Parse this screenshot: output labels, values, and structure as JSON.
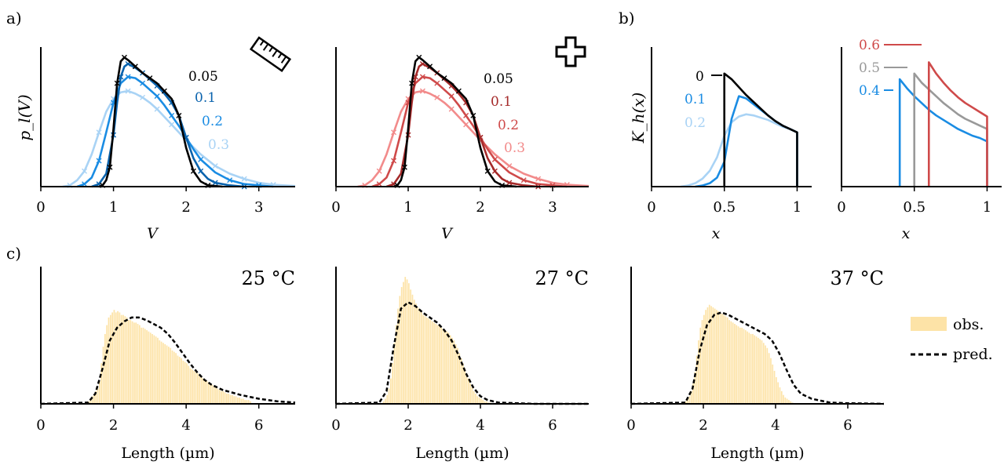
{
  "figure": {
    "panel_labels": {
      "a": "a)",
      "b": "b)",
      "c": "c)"
    },
    "colors": {
      "black": "#000000",
      "blue_dark": "#0a63ad",
      "blue_mid": "#1a8ce3",
      "blue_light": "#a9d3f5",
      "red_dark": "#a52a2a",
      "red_mid": "#cf4a4a",
      "red_light": "#f28b8b",
      "grey": "#999999",
      "hist": "#fde3a7",
      "pred": "#000000"
    }
  },
  "chart_data": [
    {
      "id": "a-left",
      "type": "line",
      "icon": "ruler-icon",
      "xlabel": "V",
      "ylabel": "p_l(V)",
      "xlim": [
        0,
        3.5
      ],
      "xticks": [
        "0",
        "1",
        "2",
        "3"
      ],
      "series": [
        {
          "name": "0.05",
          "color": "#000000",
          "x": [
            0.8,
            0.85,
            0.9,
            0.95,
            1.0,
            1.05,
            1.1,
            1.15,
            1.2,
            1.3,
            1.4,
            1.5,
            1.6,
            1.7,
            1.8,
            1.9,
            2.0,
            2.1,
            2.2,
            2.3,
            2.5
          ],
          "y": [
            0,
            0.01,
            0.05,
            0.15,
            0.45,
            0.8,
            0.97,
            1.0,
            0.98,
            0.93,
            0.88,
            0.84,
            0.8,
            0.74,
            0.68,
            0.55,
            0.3,
            0.12,
            0.04,
            0.01,
            0
          ]
        },
        {
          "name": "0.1",
          "color": "#0a63ad",
          "x": [
            0.7,
            0.8,
            0.9,
            1.0,
            1.05,
            1.1,
            1.15,
            1.2,
            1.3,
            1.4,
            1.5,
            1.6,
            1.7,
            1.8,
            1.9,
            2.0,
            2.1,
            2.2,
            2.3,
            2.4,
            2.6,
            2.8
          ],
          "y": [
            0,
            0.02,
            0.1,
            0.4,
            0.65,
            0.85,
            0.93,
            0.95,
            0.92,
            0.88,
            0.83,
            0.78,
            0.72,
            0.65,
            0.55,
            0.38,
            0.22,
            0.12,
            0.06,
            0.03,
            0.01,
            0
          ]
        },
        {
          "name": "0.2",
          "color": "#1a8ce3",
          "x": [
            0.5,
            0.6,
            0.7,
            0.8,
            0.9,
            1.0,
            1.1,
            1.2,
            1.3,
            1.4,
            1.5,
            1.6,
            1.7,
            1.8,
            1.9,
            2.0,
            2.1,
            2.2,
            2.4,
            2.6,
            2.8,
            3.0,
            3.2
          ],
          "y": [
            0,
            0.02,
            0.07,
            0.2,
            0.42,
            0.65,
            0.8,
            0.85,
            0.84,
            0.8,
            0.75,
            0.7,
            0.63,
            0.55,
            0.47,
            0.38,
            0.29,
            0.21,
            0.11,
            0.05,
            0.02,
            0.01,
            0
          ]
        },
        {
          "name": "0.3",
          "color": "#a9d3f5",
          "x": [
            0.3,
            0.4,
            0.5,
            0.6,
            0.7,
            0.8,
            0.9,
            1.0,
            1.1,
            1.2,
            1.3,
            1.4,
            1.5,
            1.6,
            1.7,
            1.8,
            1.9,
            2.0,
            2.2,
            2.4,
            2.6,
            2.8,
            3.0,
            3.2,
            3.5
          ],
          "y": [
            0,
            0.01,
            0.05,
            0.12,
            0.25,
            0.42,
            0.58,
            0.68,
            0.73,
            0.74,
            0.72,
            0.69,
            0.65,
            0.6,
            0.54,
            0.48,
            0.42,
            0.36,
            0.25,
            0.16,
            0.1,
            0.06,
            0.03,
            0.015,
            0.005
          ]
        }
      ]
    },
    {
      "id": "a-right",
      "type": "line",
      "icon": "plus-icon",
      "xlabel": "V",
      "xlim": [
        0,
        3.5
      ],
      "xticks": [
        "0",
        "1",
        "2",
        "3"
      ],
      "series": [
        {
          "name": "0.05",
          "color": "#000000",
          "x": [
            0.8,
            0.85,
            0.9,
            0.95,
            1.0,
            1.05,
            1.1,
            1.15,
            1.2,
            1.3,
            1.4,
            1.5,
            1.6,
            1.7,
            1.8,
            1.9,
            2.0,
            2.1,
            2.2,
            2.3,
            2.5
          ],
          "y": [
            0,
            0.01,
            0.05,
            0.15,
            0.45,
            0.8,
            0.97,
            1.0,
            0.98,
            0.93,
            0.88,
            0.84,
            0.8,
            0.74,
            0.68,
            0.55,
            0.3,
            0.12,
            0.04,
            0.01,
            0
          ]
        },
        {
          "name": "0.1",
          "color": "#a52a2a",
          "x": [
            0.7,
            0.8,
            0.9,
            1.0,
            1.05,
            1.1,
            1.15,
            1.2,
            1.3,
            1.4,
            1.5,
            1.6,
            1.7,
            1.8,
            1.9,
            2.0,
            2.1,
            2.2,
            2.3,
            2.4,
            2.6,
            2.8
          ],
          "y": [
            0,
            0.02,
            0.1,
            0.4,
            0.65,
            0.85,
            0.93,
            0.95,
            0.92,
            0.88,
            0.83,
            0.78,
            0.72,
            0.65,
            0.55,
            0.38,
            0.22,
            0.12,
            0.06,
            0.03,
            0.01,
            0
          ]
        },
        {
          "name": "0.2",
          "color": "#cf4a4a",
          "x": [
            0.5,
            0.6,
            0.7,
            0.8,
            0.9,
            1.0,
            1.1,
            1.2,
            1.3,
            1.4,
            1.5,
            1.6,
            1.7,
            1.8,
            1.9,
            2.0,
            2.1,
            2.2,
            2.4,
            2.6,
            2.8,
            3.0,
            3.2
          ],
          "y": [
            0,
            0.02,
            0.07,
            0.2,
            0.42,
            0.65,
            0.8,
            0.85,
            0.84,
            0.8,
            0.75,
            0.7,
            0.63,
            0.55,
            0.47,
            0.38,
            0.29,
            0.21,
            0.11,
            0.05,
            0.02,
            0.01,
            0
          ]
        },
        {
          "name": "0.3",
          "color": "#f28b8b",
          "x": [
            0.3,
            0.4,
            0.5,
            0.6,
            0.7,
            0.8,
            0.9,
            1.0,
            1.1,
            1.2,
            1.3,
            1.4,
            1.5,
            1.6,
            1.7,
            1.8,
            1.9,
            2.0,
            2.2,
            2.4,
            2.6,
            2.8,
            3.0,
            3.2,
            3.5
          ],
          "y": [
            0,
            0.01,
            0.05,
            0.12,
            0.25,
            0.42,
            0.58,
            0.68,
            0.73,
            0.74,
            0.72,
            0.69,
            0.65,
            0.6,
            0.54,
            0.48,
            0.42,
            0.36,
            0.25,
            0.16,
            0.1,
            0.06,
            0.03,
            0.015,
            0.005
          ]
        }
      ]
    },
    {
      "id": "b-left",
      "type": "line",
      "xlabel": "x",
      "ylabel": "K_h(x)",
      "xlim": [
        0,
        1.1
      ],
      "xticks": [
        "0",
        "0.5",
        "1"
      ],
      "series": [
        {
          "name": "0",
          "color": "#000000",
          "x": [
            0.5,
            0.5,
            0.55,
            0.6,
            0.65,
            0.7,
            0.75,
            0.8,
            0.85,
            0.9,
            0.95,
            1.0,
            1.0
          ],
          "y": [
            0,
            1.0,
            0.95,
            0.88,
            0.81,
            0.75,
            0.69,
            0.63,
            0.58,
            0.54,
            0.51,
            0.48,
            0
          ]
        },
        {
          "name": "0.1",
          "color": "#1a8ce3",
          "x": [
            0.3,
            0.35,
            0.4,
            0.45,
            0.5,
            0.55,
            0.6,
            0.65,
            0.7,
            0.75,
            0.8,
            0.85,
            0.9,
            0.95,
            1.0,
            1.0
          ],
          "y": [
            0,
            0.01,
            0.03,
            0.08,
            0.22,
            0.6,
            0.8,
            0.78,
            0.73,
            0.68,
            0.63,
            0.58,
            0.54,
            0.51,
            0.48,
            0
          ]
        },
        {
          "name": "0.2",
          "color": "#a9d3f5",
          "x": [
            0.2,
            0.25,
            0.3,
            0.35,
            0.4,
            0.45,
            0.5,
            0.55,
            0.6,
            0.65,
            0.7,
            0.75,
            0.8,
            0.85,
            0.9,
            0.95,
            1.0,
            1.0
          ],
          "y": [
            0,
            0.01,
            0.03,
            0.07,
            0.14,
            0.26,
            0.45,
            0.57,
            0.62,
            0.64,
            0.63,
            0.61,
            0.59,
            0.56,
            0.53,
            0.51,
            0.48,
            0
          ]
        }
      ]
    },
    {
      "id": "b-right",
      "type": "line",
      "xlabel": "x",
      "xlim": [
        0,
        1.1
      ],
      "xticks": [
        "0",
        "0.5",
        "1"
      ],
      "series": [
        {
          "name": "0.6",
          "color": "#cf4a4a",
          "x": [
            0.6,
            0.6,
            0.65,
            0.7,
            0.75,
            0.8,
            0.85,
            0.9,
            0.95,
            1.0,
            1.0
          ],
          "y": [
            0,
            1.1,
            1.0,
            0.92,
            0.85,
            0.79,
            0.74,
            0.7,
            0.66,
            0.62,
            0
          ]
        },
        {
          "name": "0.5",
          "color": "#999999",
          "x": [
            0.5,
            0.5,
            0.55,
            0.6,
            0.65,
            0.7,
            0.75,
            0.8,
            0.85,
            0.9,
            0.95,
            1.0,
            1.0
          ],
          "y": [
            0,
            1.0,
            0.92,
            0.86,
            0.8,
            0.74,
            0.69,
            0.64,
            0.6,
            0.57,
            0.54,
            0.51,
            0
          ]
        },
        {
          "name": "0.4",
          "color": "#1a8ce3",
          "x": [
            0.4,
            0.4,
            0.45,
            0.5,
            0.55,
            0.6,
            0.65,
            0.7,
            0.75,
            0.8,
            0.85,
            0.9,
            0.95,
            1.0,
            1.0
          ],
          "y": [
            0,
            0.95,
            0.87,
            0.8,
            0.74,
            0.68,
            0.63,
            0.59,
            0.55,
            0.51,
            0.48,
            0.45,
            0.43,
            0.4,
            0
          ]
        }
      ]
    },
    {
      "id": "c1",
      "type": "bar",
      "title": "25 °C",
      "xlabel": "Length (µm)",
      "xlim": [
        0,
        7
      ],
      "xticks": [
        "0",
        "2",
        "4",
        "6"
      ],
      "hist": {
        "bin_start": 1.3,
        "bin_width": 0.05,
        "values": [
          0.02,
          0.04,
          0.06,
          0.08,
          0.1,
          0.12,
          0.18,
          0.32,
          0.45,
          0.55,
          0.62,
          0.68,
          0.7,
          0.72,
          0.74,
          0.72,
          0.73,
          0.72,
          0.7,
          0.7,
          0.69,
          0.68,
          0.66,
          0.66,
          0.65,
          0.64,
          0.64,
          0.63,
          0.62,
          0.6,
          0.6,
          0.59,
          0.58,
          0.57,
          0.56,
          0.55,
          0.54,
          0.53,
          0.52,
          0.5,
          0.49,
          0.48,
          0.47,
          0.46,
          0.45,
          0.44,
          0.42,
          0.41,
          0.4,
          0.38,
          0.37,
          0.36,
          0.34,
          0.33,
          0.32,
          0.3,
          0.28,
          0.27,
          0.26,
          0.25,
          0.24,
          0.22,
          0.21,
          0.2,
          0.19,
          0.18,
          0.17,
          0.16,
          0.15,
          0.14,
          0.13,
          0.12,
          0.11,
          0.1,
          0.1,
          0.09,
          0.08,
          0.08,
          0.07,
          0.07,
          0.06,
          0.06,
          0.05,
          0.05,
          0.04,
          0.04,
          0.03,
          0.03,
          0.03,
          0.02
        ]
      },
      "pred": {
        "x": [
          0,
          1.3,
          1.5,
          1.7,
          1.9,
          2.1,
          2.3,
          2.5,
          2.7,
          2.9,
          3.1,
          3.3,
          3.5,
          3.7,
          3.9,
          4.1,
          4.3,
          4.5,
          4.7,
          5.0,
          5.5,
          6.0,
          6.5,
          7.0
        ],
        "y": [
          0,
          0.01,
          0.08,
          0.28,
          0.5,
          0.6,
          0.65,
          0.68,
          0.68,
          0.66,
          0.63,
          0.6,
          0.55,
          0.48,
          0.4,
          0.32,
          0.25,
          0.19,
          0.15,
          0.11,
          0.07,
          0.04,
          0.02,
          0.01
        ]
      }
    },
    {
      "id": "c2",
      "type": "bar",
      "title": "27 °C",
      "xlabel": "Length (µm)",
      "xlim": [
        0,
        7
      ],
      "xticks": [
        "0",
        "2",
        "4",
        "6"
      ],
      "hist": {
        "bin_start": 1.3,
        "bin_width": 0.05,
        "values": [
          0.02,
          0.04,
          0.07,
          0.12,
          0.2,
          0.32,
          0.48,
          0.62,
          0.75,
          0.85,
          0.92,
          0.96,
          1.0,
          0.98,
          0.95,
          0.9,
          0.86,
          0.82,
          0.79,
          0.76,
          0.74,
          0.72,
          0.7,
          0.69,
          0.68,
          0.67,
          0.66,
          0.65,
          0.64,
          0.63,
          0.62,
          0.61,
          0.6,
          0.59,
          0.58,
          0.57,
          0.56,
          0.54,
          0.52,
          0.5,
          0.47,
          0.44,
          0.4,
          0.36,
          0.32,
          0.28,
          0.24,
          0.2,
          0.16,
          0.13,
          0.1,
          0.08,
          0.06,
          0.05,
          0.04,
          0.03,
          0.02,
          0.02,
          0.01,
          0.01
        ]
      },
      "pred": {
        "x": [
          0,
          1.2,
          1.4,
          1.6,
          1.8,
          2.0,
          2.2,
          2.4,
          2.6,
          2.8,
          3.0,
          3.2,
          3.4,
          3.6,
          3.8,
          4.0,
          4.2,
          4.5,
          5.0,
          5.5,
          6.0,
          7.0
        ],
        "y": [
          0,
          0.01,
          0.1,
          0.45,
          0.75,
          0.8,
          0.77,
          0.72,
          0.68,
          0.64,
          0.58,
          0.5,
          0.38,
          0.24,
          0.13,
          0.06,
          0.03,
          0.01,
          0.005,
          0,
          0,
          0
        ]
      }
    },
    {
      "id": "c3",
      "type": "bar",
      "title": "37 °C",
      "xlabel": "Length (µm)",
      "xlim": [
        0,
        7
      ],
      "xticks": [
        "0",
        "2",
        "4",
        "6"
      ],
      "hist": {
        "bin_start": 1.5,
        "bin_width": 0.05,
        "values": [
          0.02,
          0.04,
          0.06,
          0.1,
          0.16,
          0.25,
          0.38,
          0.5,
          0.6,
          0.66,
          0.7,
          0.74,
          0.76,
          0.78,
          0.77,
          0.76,
          0.75,
          0.74,
          0.73,
          0.72,
          0.71,
          0.7,
          0.69,
          0.68,
          0.66,
          0.65,
          0.64,
          0.63,
          0.62,
          0.61,
          0.6,
          0.6,
          0.59,
          0.58,
          0.57,
          0.56,
          0.55,
          0.55,
          0.54,
          0.53,
          0.52,
          0.51,
          0.5,
          0.48,
          0.46,
          0.44,
          0.4,
          0.36,
          0.31,
          0.26,
          0.21,
          0.17,
          0.13,
          0.1,
          0.07,
          0.05,
          0.04,
          0.03,
          0.02,
          0.01
        ]
      },
      "pred": {
        "x": [
          0,
          1.5,
          1.7,
          1.9,
          2.1,
          2.3,
          2.5,
          2.7,
          2.9,
          3.1,
          3.3,
          3.5,
          3.7,
          3.9,
          4.1,
          4.3,
          4.5,
          4.7,
          5.0,
          5.5,
          6.0,
          7.0
        ],
        "y": [
          0,
          0.01,
          0.12,
          0.42,
          0.62,
          0.7,
          0.72,
          0.7,
          0.67,
          0.64,
          0.61,
          0.58,
          0.55,
          0.5,
          0.4,
          0.27,
          0.15,
          0.08,
          0.04,
          0.01,
          0.005,
          0
        ]
      }
    }
  ],
  "legend": {
    "obs_label": "obs.",
    "pred_label": "pred."
  }
}
